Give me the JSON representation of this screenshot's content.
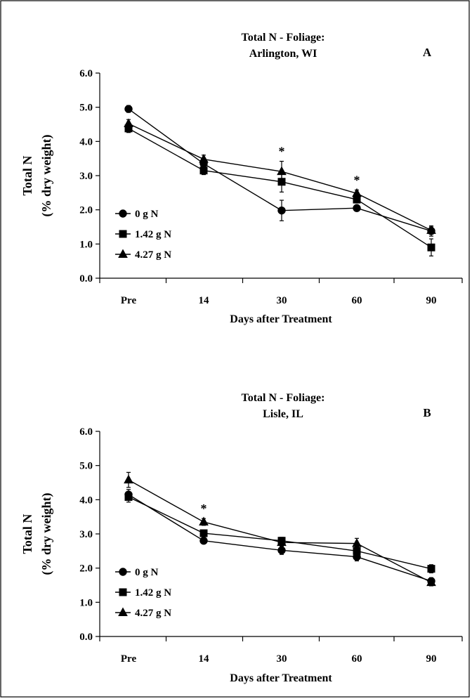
{
  "chart_data": [
    {
      "type": "line",
      "panel_label": "A",
      "title": "Total N - Foliage:",
      "subtitle": "Arlington, WI",
      "xlabel": "Days after Treatment",
      "ylabel": "Total N",
      "ylabel2": "(% dry weight)",
      "categories": [
        "Pre",
        "14",
        "30",
        "60",
        "90"
      ],
      "ylim": [
        0,
        6
      ],
      "yticks": [
        "0.0",
        "1.0",
        "2.0",
        "3.0",
        "4.0",
        "5.0",
        "6.0"
      ],
      "legend_position": "bottom-left",
      "significance_marks": [
        {
          "category": "30",
          "label": "*"
        },
        {
          "category": "60",
          "label": "*"
        }
      ],
      "series": [
        {
          "name": "0 g N",
          "marker": "circle",
          "values": [
            4.95,
            3.35,
            1.98,
            2.05,
            1.38
          ],
          "errors": [
            0.1,
            0.15,
            0.3,
            0.08,
            0.15
          ]
        },
        {
          "name": "1.42 g N",
          "marker": "square",
          "values": [
            4.38,
            3.15,
            2.82,
            2.3,
            0.9
          ],
          "errors": [
            0.12,
            0.12,
            0.3,
            0.1,
            0.25
          ]
        },
        {
          "name": "4.27 g N",
          "marker": "triangle",
          "values": [
            4.52,
            3.48,
            3.12,
            2.48,
            1.4
          ],
          "errors": [
            0.12,
            0.12,
            0.3,
            0.1,
            0.1
          ]
        }
      ]
    },
    {
      "type": "line",
      "panel_label": "B",
      "title": "Total N - Foliage:",
      "subtitle": "Lisle, IL",
      "xlabel": "Days after Treatment",
      "ylabel": "Total N",
      "ylabel2": "(% dry weight)",
      "categories": [
        "Pre",
        "14",
        "30",
        "60",
        "90"
      ],
      "ylim": [
        0,
        6
      ],
      "yticks": [
        "0.0",
        "1.0",
        "2.0",
        "3.0",
        "4.0",
        "5.0",
        "6.0"
      ],
      "legend_position": "bottom-left",
      "significance_marks": [
        {
          "category": "14",
          "label": "*"
        }
      ],
      "series": [
        {
          "name": "0 g N",
          "marker": "circle",
          "values": [
            4.15,
            2.8,
            2.52,
            2.33,
            1.62
          ],
          "errors": [
            0.15,
            0.08,
            0.12,
            0.12,
            0.1
          ]
        },
        {
          "name": "1.42 g N",
          "marker": "square",
          "values": [
            4.08,
            3.02,
            2.8,
            2.5,
            1.98
          ],
          "errors": [
            0.15,
            0.08,
            0.1,
            0.12,
            0.12
          ]
        },
        {
          "name": "4.27 g N",
          "marker": "triangle",
          "values": [
            4.58,
            3.35,
            2.75,
            2.72,
            1.58
          ],
          "errors": [
            0.22,
            0.1,
            0.1,
            0.15,
            0.1
          ]
        }
      ]
    }
  ]
}
